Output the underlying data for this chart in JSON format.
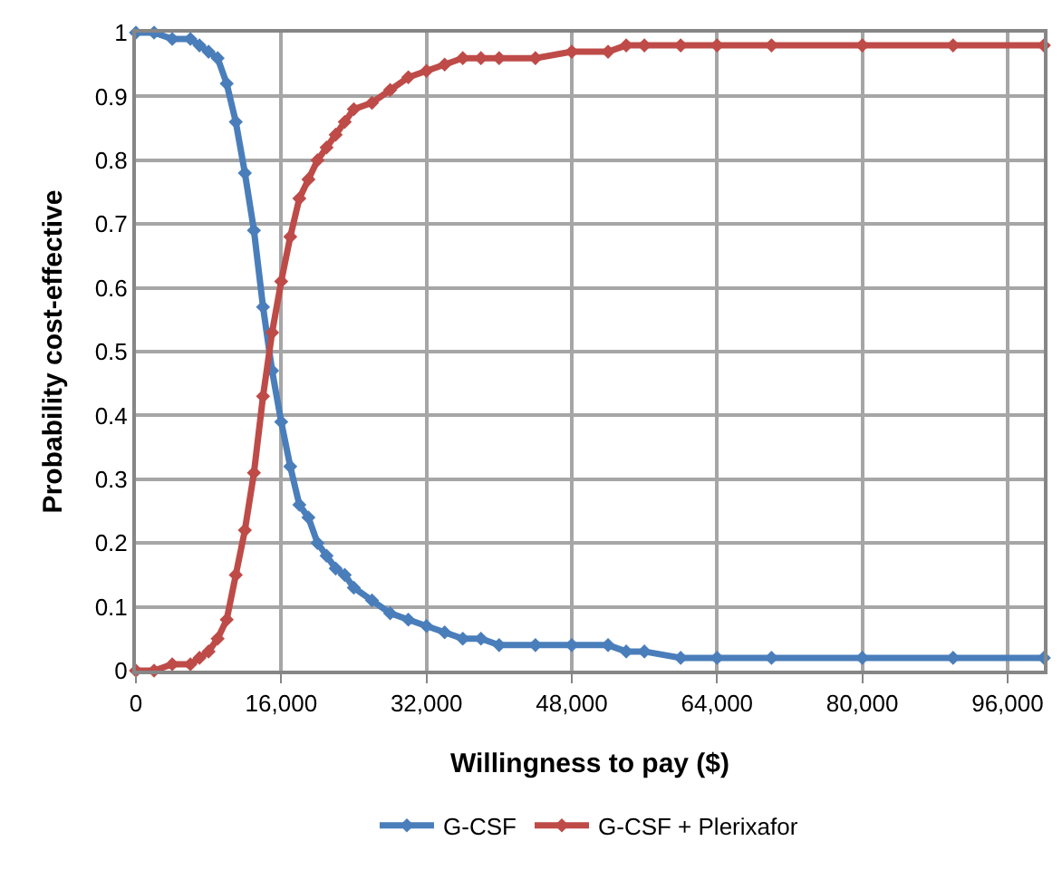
{
  "chart_data": {
    "type": "line",
    "xlabel": "Willingness to pay ($)",
    "ylabel": "Probability cost-effective",
    "x": [
      0,
      2000,
      4000,
      6000,
      7000,
      8000,
      9000,
      10000,
      11000,
      12000,
      13000,
      14000,
      15000,
      16000,
      17000,
      18000,
      19000,
      20000,
      21000,
      22000,
      23000,
      24000,
      26000,
      28000,
      30000,
      32000,
      34000,
      36000,
      38000,
      40000,
      44000,
      48000,
      52000,
      54000,
      56000,
      60000,
      64000,
      70000,
      80000,
      90000,
      100000
    ],
    "series": [
      {
        "name": "G-CSF",
        "color": "#4a7ebb",
        "values": [
          1,
          1,
          0.99,
          0.99,
          0.98,
          0.97,
          0.96,
          0.92,
          0.86,
          0.78,
          0.69,
          0.57,
          0.47,
          0.39,
          0.32,
          0.26,
          0.24,
          0.2,
          0.18,
          0.16,
          0.15,
          0.13,
          0.11,
          0.09,
          0.08,
          0.07,
          0.06,
          0.05,
          0.05,
          0.04,
          0.04,
          0.04,
          0.04,
          0.03,
          0.03,
          0.02,
          0.02,
          0.02,
          0.02,
          0.02,
          0.02
        ]
      },
      {
        "name": "G-CSF + Plerixafor",
        "color": "#be4b48",
        "values": [
          0,
          0,
          0.01,
          0.01,
          0.02,
          0.03,
          0.05,
          0.08,
          0.15,
          0.22,
          0.31,
          0.43,
          0.53,
          0.61,
          0.68,
          0.74,
          0.77,
          0.8,
          0.82,
          0.84,
          0.86,
          0.88,
          0.89,
          0.91,
          0.93,
          0.94,
          0.95,
          0.96,
          0.96,
          0.96,
          0.96,
          0.97,
          0.97,
          0.98,
          0.98,
          0.98,
          0.98,
          0.98,
          0.98,
          0.98,
          0.98
        ]
      }
    ],
    "xlim": [
      0,
      100000
    ],
    "xticks": [
      {
        "value": 0,
        "label": "0"
      },
      {
        "value": 16000,
        "label": "16,000"
      },
      {
        "value": 32000,
        "label": "32,000"
      },
      {
        "value": 48000,
        "label": "48,000"
      },
      {
        "value": 64000,
        "label": "64,000"
      },
      {
        "value": 80000,
        "label": "80,000"
      },
      {
        "value": 96000,
        "label": "96,000"
      }
    ],
    "ylim": [
      0,
      1
    ],
    "yticks": [
      0,
      0.1,
      0.2,
      0.3,
      0.4,
      0.5,
      0.6,
      0.7,
      0.8,
      0.9,
      1
    ],
    "grid": true,
    "legend": "bottom",
    "marker": "diamond",
    "line_style": "solid"
  }
}
